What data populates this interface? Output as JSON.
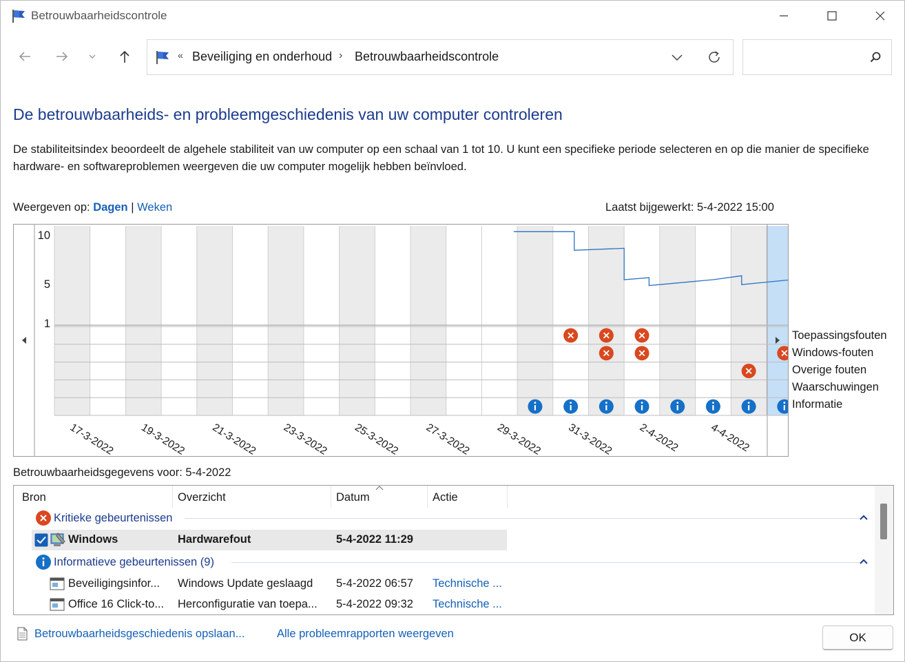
{
  "window": {
    "title": "Betrouwbaarheidscontrole"
  },
  "nav": {
    "breadcrumb_prefix": "«",
    "breadcrumb": [
      "Beveiliging en onderhoud",
      "Betrouwbaarheidscontrole"
    ],
    "breadcrumb_separator": "›",
    "search_placeholder": "",
    "search_value": ""
  },
  "main": {
    "heading": "De betrouwbaarheids- en probleemgeschiedenis van uw computer controleren",
    "description": "De stabiliteitsindex beoordeelt de algehele stabiliteit van uw computer op een schaal van 1 tot 10. U kunt een specifieke periode selecteren en op die manier de specifieke hardware- en softwareproblemen weergeven die uw computer mogelijk hebben beïnvloed.",
    "view_by_label": "Weergeven op:",
    "view_days": "Dagen",
    "view_separator": "|",
    "view_weeks": "Weken",
    "last_updated": "Laatst bijgewerkt: 5-4-2022 15:00"
  },
  "chart_data": {
    "type": "line",
    "y_ticks": [
      "10",
      "5",
      "1"
    ],
    "ylim": [
      1,
      10
    ],
    "days": [
      "16-3",
      "17-3",
      "18-3",
      "19-3",
      "20-3",
      "21-3",
      "22-3",
      "23-3",
      "24-3",
      "25-3",
      "26-3",
      "27-3",
      "28-3",
      "29-3",
      "30-3",
      "31-3",
      "1-4",
      "2-4",
      "3-4",
      "4-4",
      "5-4"
    ],
    "x_tick_labels": [
      "17-3-2022",
      "19-3-2022",
      "21-3-2022",
      "23-3-2022",
      "25-3-2022",
      "27-3-2022",
      "29-3-2022",
      "31-3-2022",
      "2-4-2022",
      "4-4-2022"
    ],
    "x_tick_day_index": [
      1,
      3,
      5,
      7,
      9,
      11,
      13,
      15,
      17,
      19
    ],
    "stability_series": {
      "name": "Stabiliteitsindex",
      "points": [
        [
          12.9,
          9.7
        ],
        [
          14.6,
          9.7
        ],
        [
          14.6,
          7.8
        ],
        [
          16.0,
          8.0
        ],
        [
          16.0,
          4.8
        ],
        [
          16.7,
          5.0
        ],
        [
          16.7,
          4.2
        ],
        [
          18.5,
          4.8
        ],
        [
          19.3,
          5.2
        ],
        [
          19.3,
          4.3
        ],
        [
          21.0,
          4.9
        ]
      ]
    },
    "event_rows": [
      "Toepassingsfouten",
      "Windows-fouten",
      "Overige fouten",
      "Waarschuwingen",
      "Informatie"
    ],
    "events": {
      "Toepassingsfouten": [
        14,
        15,
        16
      ],
      "Windows-fouten": [
        15,
        16,
        20
      ],
      "Overige fouten": [
        19
      ],
      "Waarschuwingen": [],
      "Informatie": [
        13,
        14,
        15,
        16,
        17,
        18,
        19,
        20
      ]
    },
    "shaded_day_index": [
      0,
      2,
      4,
      6,
      8,
      10,
      13,
      15,
      17,
      19
    ],
    "selected_day_index": 20,
    "colors": {
      "error": "#d9481f",
      "info": "#1570c8",
      "line": "#2a72c4",
      "selected": "#c5dff7",
      "shade": "#ebebeb"
    }
  },
  "details": {
    "label": "Betrouwbaarheidsgegevens voor: 5-4-2022",
    "columns": [
      "Bron",
      "Overzicht",
      "Datum",
      "Actie"
    ],
    "groups": [
      {
        "label": "Kritieke gebeurtenissen",
        "icon": "error-icon",
        "rows": [
          {
            "source": "Windows",
            "summary": "Hardwarefout",
            "date": "5-4-2022 11:29",
            "action": "",
            "selected": true
          }
        ]
      },
      {
        "label": "Informatieve gebeurtenissen (9)",
        "icon": "info-icon",
        "rows": [
          {
            "source": "Beveiligingsinfor...",
            "summary": "Windows Update geslaagd",
            "date": "5-4-2022 06:57",
            "action": "Technische ...",
            "selected": false
          },
          {
            "source": "Office 16 Click-to...",
            "summary": "Herconfiguratie van toepa...",
            "date": "5-4-2022 09:32",
            "action": "Technische ...",
            "selected": false
          }
        ]
      }
    ]
  },
  "footer": {
    "save_link": "Betrouwbaarheidsgeschiedenis opslaan...",
    "reports_link": "Alle probleemrapporten weergeven",
    "ok_label": "OK"
  }
}
